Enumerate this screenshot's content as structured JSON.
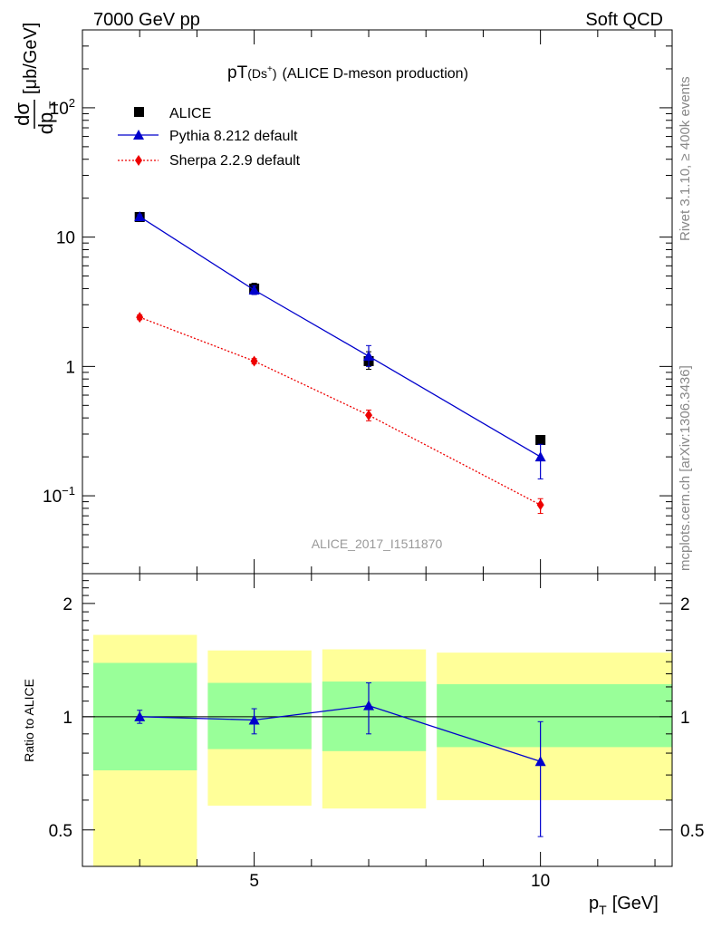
{
  "header": {
    "left": "7000 GeV pp",
    "right": "Soft QCD"
  },
  "side": {
    "rivet": "Rivet 3.1.10, ≥ 400k events",
    "mcplots": "mcplots.cern.ch [arXiv:1306.3436]"
  },
  "chart_data": [
    {
      "type": "scatter",
      "title_main": "pT",
      "title_particle": "(Ds",
      "title_sup": "+",
      "title_close": ")",
      "title_rest": "(ALICE D-meson production)",
      "ylabel_num": "dσ",
      "ylabel_den": "dp",
      "ylabel_sub": "T",
      "ylabel_unit": "[μb/GeV]",
      "yscale": "log",
      "ylim": [
        0.025,
        400
      ],
      "xlim": [
        2,
        12.3
      ],
      "watermark": "ALICE_2017_I1511870",
      "legend_position": "top-left",
      "yticks": [
        {
          "value": 0.1,
          "base": "10",
          "exp": "−1"
        },
        {
          "value": 1,
          "label": "1"
        },
        {
          "value": 10,
          "label": "10"
        },
        {
          "value": 100,
          "base": "10",
          "exp": "2"
        }
      ],
      "series": [
        {
          "name": "ALICE",
          "marker": "square",
          "color": "#000000",
          "x": [
            3,
            5,
            7,
            10
          ],
          "xerr": [
            1,
            1,
            1,
            2
          ],
          "y": [
            14.3,
            4.0,
            1.1,
            0.27
          ],
          "yerr_up": [
            0.6,
            0.4,
            0.2,
            0.02
          ],
          "yerr_down": [
            0.6,
            0.4,
            0.15,
            0.02
          ]
        },
        {
          "name": "Pythia 8.212 default",
          "marker": "triangle",
          "color": "#0000cc",
          "x": [
            3,
            5,
            7,
            10
          ],
          "y": [
            14.4,
            3.9,
            1.2,
            0.2
          ],
          "yerr_up": [
            0.5,
            0.3,
            0.25,
            0.05
          ],
          "yerr_down": [
            0.5,
            0.3,
            0.2,
            0.065
          ]
        },
        {
          "name": "Sherpa 2.2.9 default",
          "marker": "diamond",
          "color": "#ee0000",
          "line": "dotted",
          "x": [
            3,
            5,
            7,
            10
          ],
          "y": [
            2.4,
            1.1,
            0.42,
            0.085
          ],
          "yerr_up": [
            0.1,
            0.05,
            0.04,
            0.01
          ],
          "yerr_down": [
            0.1,
            0.05,
            0.04,
            0.012
          ]
        }
      ]
    },
    {
      "type": "scatter",
      "ylabel": "Ratio to ALICE",
      "xlabel_main": "p",
      "xlabel_sub": "T",
      "xlabel_unit": "[GeV]",
      "yscale": "log",
      "ylim": [
        0.4,
        2.4
      ],
      "xlim": [
        2,
        12.3
      ],
      "yticks": [
        {
          "value": 0.5,
          "label": "0.5"
        },
        {
          "value": 1,
          "label": "1"
        },
        {
          "value": 2,
          "label": "2"
        }
      ],
      "xticks": [
        {
          "value": 5,
          "label": "5"
        },
        {
          "value": 10,
          "label": "10"
        }
      ],
      "bands": [
        {
          "x0": 2,
          "x1": 4,
          "yellow": [
            0.4,
            1.65
          ],
          "green": [
            0.72,
            1.39
          ]
        },
        {
          "x0": 4,
          "x1": 6,
          "yellow": [
            0.58,
            1.5
          ],
          "green": [
            0.82,
            1.23
          ]
        },
        {
          "x0": 6,
          "x1": 8,
          "yellow": [
            0.57,
            1.51
          ],
          "green": [
            0.81,
            1.24
          ]
        },
        {
          "x0": 8,
          "x1": 12.3,
          "yellow": [
            0.6,
            1.48
          ],
          "green": [
            0.83,
            1.22
          ]
        }
      ],
      "series": [
        {
          "name": "Pythia 8.212 default",
          "marker": "triangle",
          "color": "#0000cc",
          "x": [
            3,
            5,
            7,
            10
          ],
          "y": [
            1.0,
            0.98,
            1.07,
            0.76
          ],
          "yerr_up": [
            0.04,
            0.07,
            0.16,
            0.21
          ],
          "yerr_down": [
            0.04,
            0.08,
            0.17,
            0.28
          ]
        }
      ]
    }
  ]
}
